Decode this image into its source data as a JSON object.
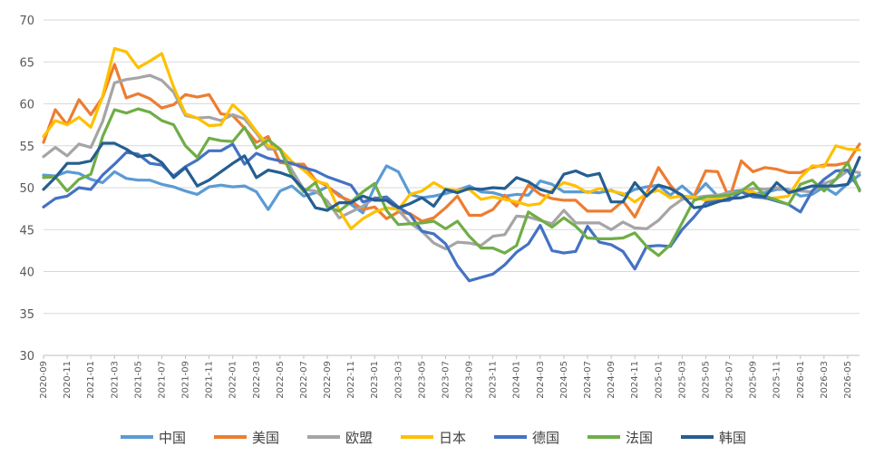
{
  "chart_data": {
    "type": "line",
    "title": "",
    "xlabel": "",
    "ylabel": "",
    "ylim": [
      30,
      70
    ],
    "yticks": [
      30,
      35,
      40,
      45,
      50,
      55,
      60,
      65,
      70
    ],
    "grid": "horizontal",
    "legend_position": "bottom",
    "x_start": "2020-09",
    "x_tick_labels": [
      "2020-09",
      "2020-11",
      "2021-01",
      "2021-03",
      "2021-05",
      "2021-07",
      "2021-09",
      "2021-11",
      "2022-01",
      "2022-03",
      "2022-05",
      "2022-07",
      "2022-09",
      "2022-11",
      "2023-01",
      "2023-03",
      "2023-05",
      "2023-07",
      "2023-09",
      "2023-11",
      "2024-01",
      "2024-03",
      "2024-05",
      "2024-07",
      "2024-09",
      "2024-11",
      "2025-01",
      "2025-03",
      "2025-05",
      "2025-07",
      "2025-09",
      "2025-11",
      "2026-01",
      "2026-03",
      "2026-05"
    ],
    "series": [
      {
        "name": "中国",
        "color": "#5b9bd5",
        "values": [
          51.5,
          51.4,
          51.9,
          51.7,
          51.0,
          50.6,
          51.9,
          51.1,
          50.9,
          50.9,
          50.4,
          50.1,
          49.6,
          49.2,
          50.1,
          50.3,
          50.1,
          50.2,
          49.5,
          47.4,
          49.6,
          50.2,
          49.0,
          49.4,
          50.1,
          49.2,
          48.0,
          47.0,
          50.1,
          52.6,
          51.9,
          49.2,
          48.8,
          49.0,
          49.3,
          49.7,
          50.2,
          49.5,
          49.4,
          49.0,
          49.2,
          49.1,
          50.8,
          50.4,
          49.5,
          49.5,
          49.5,
          49.4,
          49.7,
          49.1,
          49.8,
          50.1,
          50.3,
          49.1,
          50.2,
          49.0,
          50.5,
          49.0,
          49.5,
          49.7,
          49.3,
          49.4,
          49.8,
          49.8,
          49.0,
          49.2,
          50.1,
          49.2,
          50.5,
          51.5
        ]
      },
      {
        "name": "美国",
        "color": "#ed7d31",
        "values": [
          55.4,
          59.3,
          57.5,
          60.5,
          58.7,
          60.8,
          64.7,
          60.7,
          61.2,
          60.6,
          59.5,
          59.9,
          61.1,
          60.8,
          61.1,
          58.8,
          58.6,
          57.1,
          55.4,
          56.1,
          53.0,
          52.8,
          52.8,
          50.9,
          50.2,
          49.0,
          48.4,
          47.4,
          47.7,
          46.3,
          47.1,
          46.9,
          46.0,
          46.4,
          47.6,
          49.0,
          46.7,
          46.7,
          47.4,
          49.1,
          47.8,
          50.3,
          49.2,
          48.7,
          48.5,
          48.5,
          47.2,
          47.2,
          47.2,
          48.4,
          46.5,
          49.3,
          52.4,
          50.3,
          48.7,
          49.0,
          52.0,
          51.9,
          48.7,
          53.2,
          51.9,
          52.4,
          52.2,
          51.8,
          51.8,
          52.4,
          52.7,
          52.7,
          53.0,
          55.2
        ]
      },
      {
        "name": "欧盟",
        "color": "#a5a5a5",
        "values": [
          53.7,
          54.8,
          53.8,
          55.2,
          54.8,
          57.9,
          62.5,
          62.9,
          63.1,
          63.4,
          62.8,
          61.4,
          58.6,
          58.3,
          58.4,
          58.0,
          58.7,
          58.2,
          56.5,
          54.6,
          54.6,
          52.1,
          49.8,
          49.6,
          48.4,
          46.4,
          47.1,
          47.8,
          48.8,
          48.5,
          47.3,
          45.8,
          44.8,
          43.4,
          42.7,
          43.5,
          43.4,
          43.1,
          44.2,
          44.4,
          46.6,
          46.5,
          46.1,
          45.7,
          47.3,
          45.8,
          45.8,
          45.8,
          45.0,
          45.9,
          45.2,
          45.1,
          46.1,
          47.6,
          48.6,
          48.8,
          49.0,
          49.1,
          49.4,
          49.5,
          49.9,
          49.8,
          50.0,
          49.7,
          49.6,
          49.5,
          50.5,
          51.0,
          52.0,
          51.8
        ]
      },
      {
        "name": "日本",
        "color": "#ffc000",
        "values": [
          56.1,
          58.0,
          57.5,
          58.4,
          57.2,
          60.9,
          66.6,
          66.2,
          64.3,
          65.1,
          66.0,
          62.0,
          58.8,
          58.3,
          57.4,
          57.5,
          59.9,
          58.6,
          56.7,
          55.0,
          54.6,
          53.1,
          52.1,
          50.8,
          50.4,
          47.3,
          45.1,
          46.3,
          47.1,
          47.6,
          47.4,
          49.2,
          49.6,
          50.6,
          49.8,
          49.7,
          49.8,
          48.6,
          48.9,
          48.6,
          48.3,
          47.9,
          48.1,
          49.7,
          50.6,
          50.2,
          49.4,
          49.9,
          49.6,
          49.3,
          48.3,
          49.3,
          49.7,
          48.8,
          49.0,
          48.9,
          48.5,
          48.7,
          49.1,
          49.6,
          49.5,
          48.7,
          48.8,
          49.0,
          51.2,
          52.6,
          52.5,
          55.0,
          54.6,
          54.5
        ]
      },
      {
        "name": "德国",
        "color": "#4472c4",
        "values": [
          47.7,
          48.7,
          49.0,
          50.0,
          49.8,
          51.5,
          52.8,
          54.2,
          54.0,
          52.9,
          52.7,
          51.4,
          52.5,
          53.3,
          54.4,
          54.4,
          55.2,
          52.8,
          54.1,
          53.5,
          53.2,
          52.9,
          52.4,
          52.0,
          51.3,
          50.8,
          50.3,
          48.3,
          48.7,
          48.9,
          47.7,
          46.8,
          44.8,
          44.5,
          43.3,
          40.7,
          38.9,
          39.3,
          39.7,
          40.8,
          42.3,
          43.3,
          45.5,
          42.5,
          42.2,
          42.4,
          45.4,
          43.5,
          43.2,
          42.4,
          40.3,
          43.0,
          43.1,
          43.0,
          45.0,
          46.5,
          48.2,
          48.4,
          48.5,
          49.5,
          48.9,
          48.8,
          48.4,
          48.0,
          47.1,
          49.6,
          51.0,
          52.0,
          52.1,
          49.8
        ]
      },
      {
        "name": "法国",
        "color": "#70ad47",
        "values": [
          51.2,
          51.3,
          49.6,
          51.0,
          51.6,
          56.1,
          59.3,
          58.9,
          59.4,
          59.0,
          58.0,
          57.5,
          55.0,
          53.6,
          55.9,
          55.6,
          55.5,
          57.2,
          54.7,
          55.7,
          54.6,
          51.4,
          49.5,
          50.6,
          47.7,
          47.2,
          48.3,
          49.5,
          50.5,
          47.3,
          45.6,
          45.7,
          45.8,
          46.0,
          45.1,
          46.0,
          44.2,
          42.8,
          42.8,
          42.2,
          43.1,
          47.1,
          46.2,
          45.3,
          46.4,
          45.4,
          44.0,
          43.9,
          43.9,
          44.0,
          44.6,
          43.0,
          41.9,
          43.2,
          45.8,
          48.5,
          48.9,
          49.0,
          49.1,
          49.6,
          50.6,
          49.0,
          48.5,
          48.0,
          50.4,
          50.9,
          49.6,
          51.0,
          53.0,
          49.6
        ]
      },
      {
        "name": "韩国",
        "color": "#255e91",
        "values": [
          49.8,
          51.2,
          52.9,
          52.9,
          53.2,
          55.3,
          55.3,
          54.6,
          53.7,
          53.9,
          53.0,
          51.2,
          52.4,
          50.2,
          50.9,
          51.9,
          52.9,
          53.8,
          51.2,
          52.1,
          51.8,
          51.3,
          49.8,
          47.6,
          47.3,
          48.2,
          48.2,
          49.0,
          48.5,
          48.5,
          47.6,
          48.1,
          48.8,
          47.8,
          49.8,
          49.4,
          49.9,
          49.8,
          50.0,
          49.9,
          51.2,
          50.7,
          49.8,
          49.4,
          51.6,
          52.0,
          51.4,
          51.7,
          48.3,
          48.3,
          50.6,
          49.0,
          50.3,
          49.9,
          49.1,
          47.6,
          47.8,
          48.3,
          48.7,
          48.8,
          49.2,
          48.9,
          50.6,
          49.4,
          49.8,
          50.2,
          50.2,
          50.2,
          50.4,
          53.6
        ]
      }
    ]
  }
}
